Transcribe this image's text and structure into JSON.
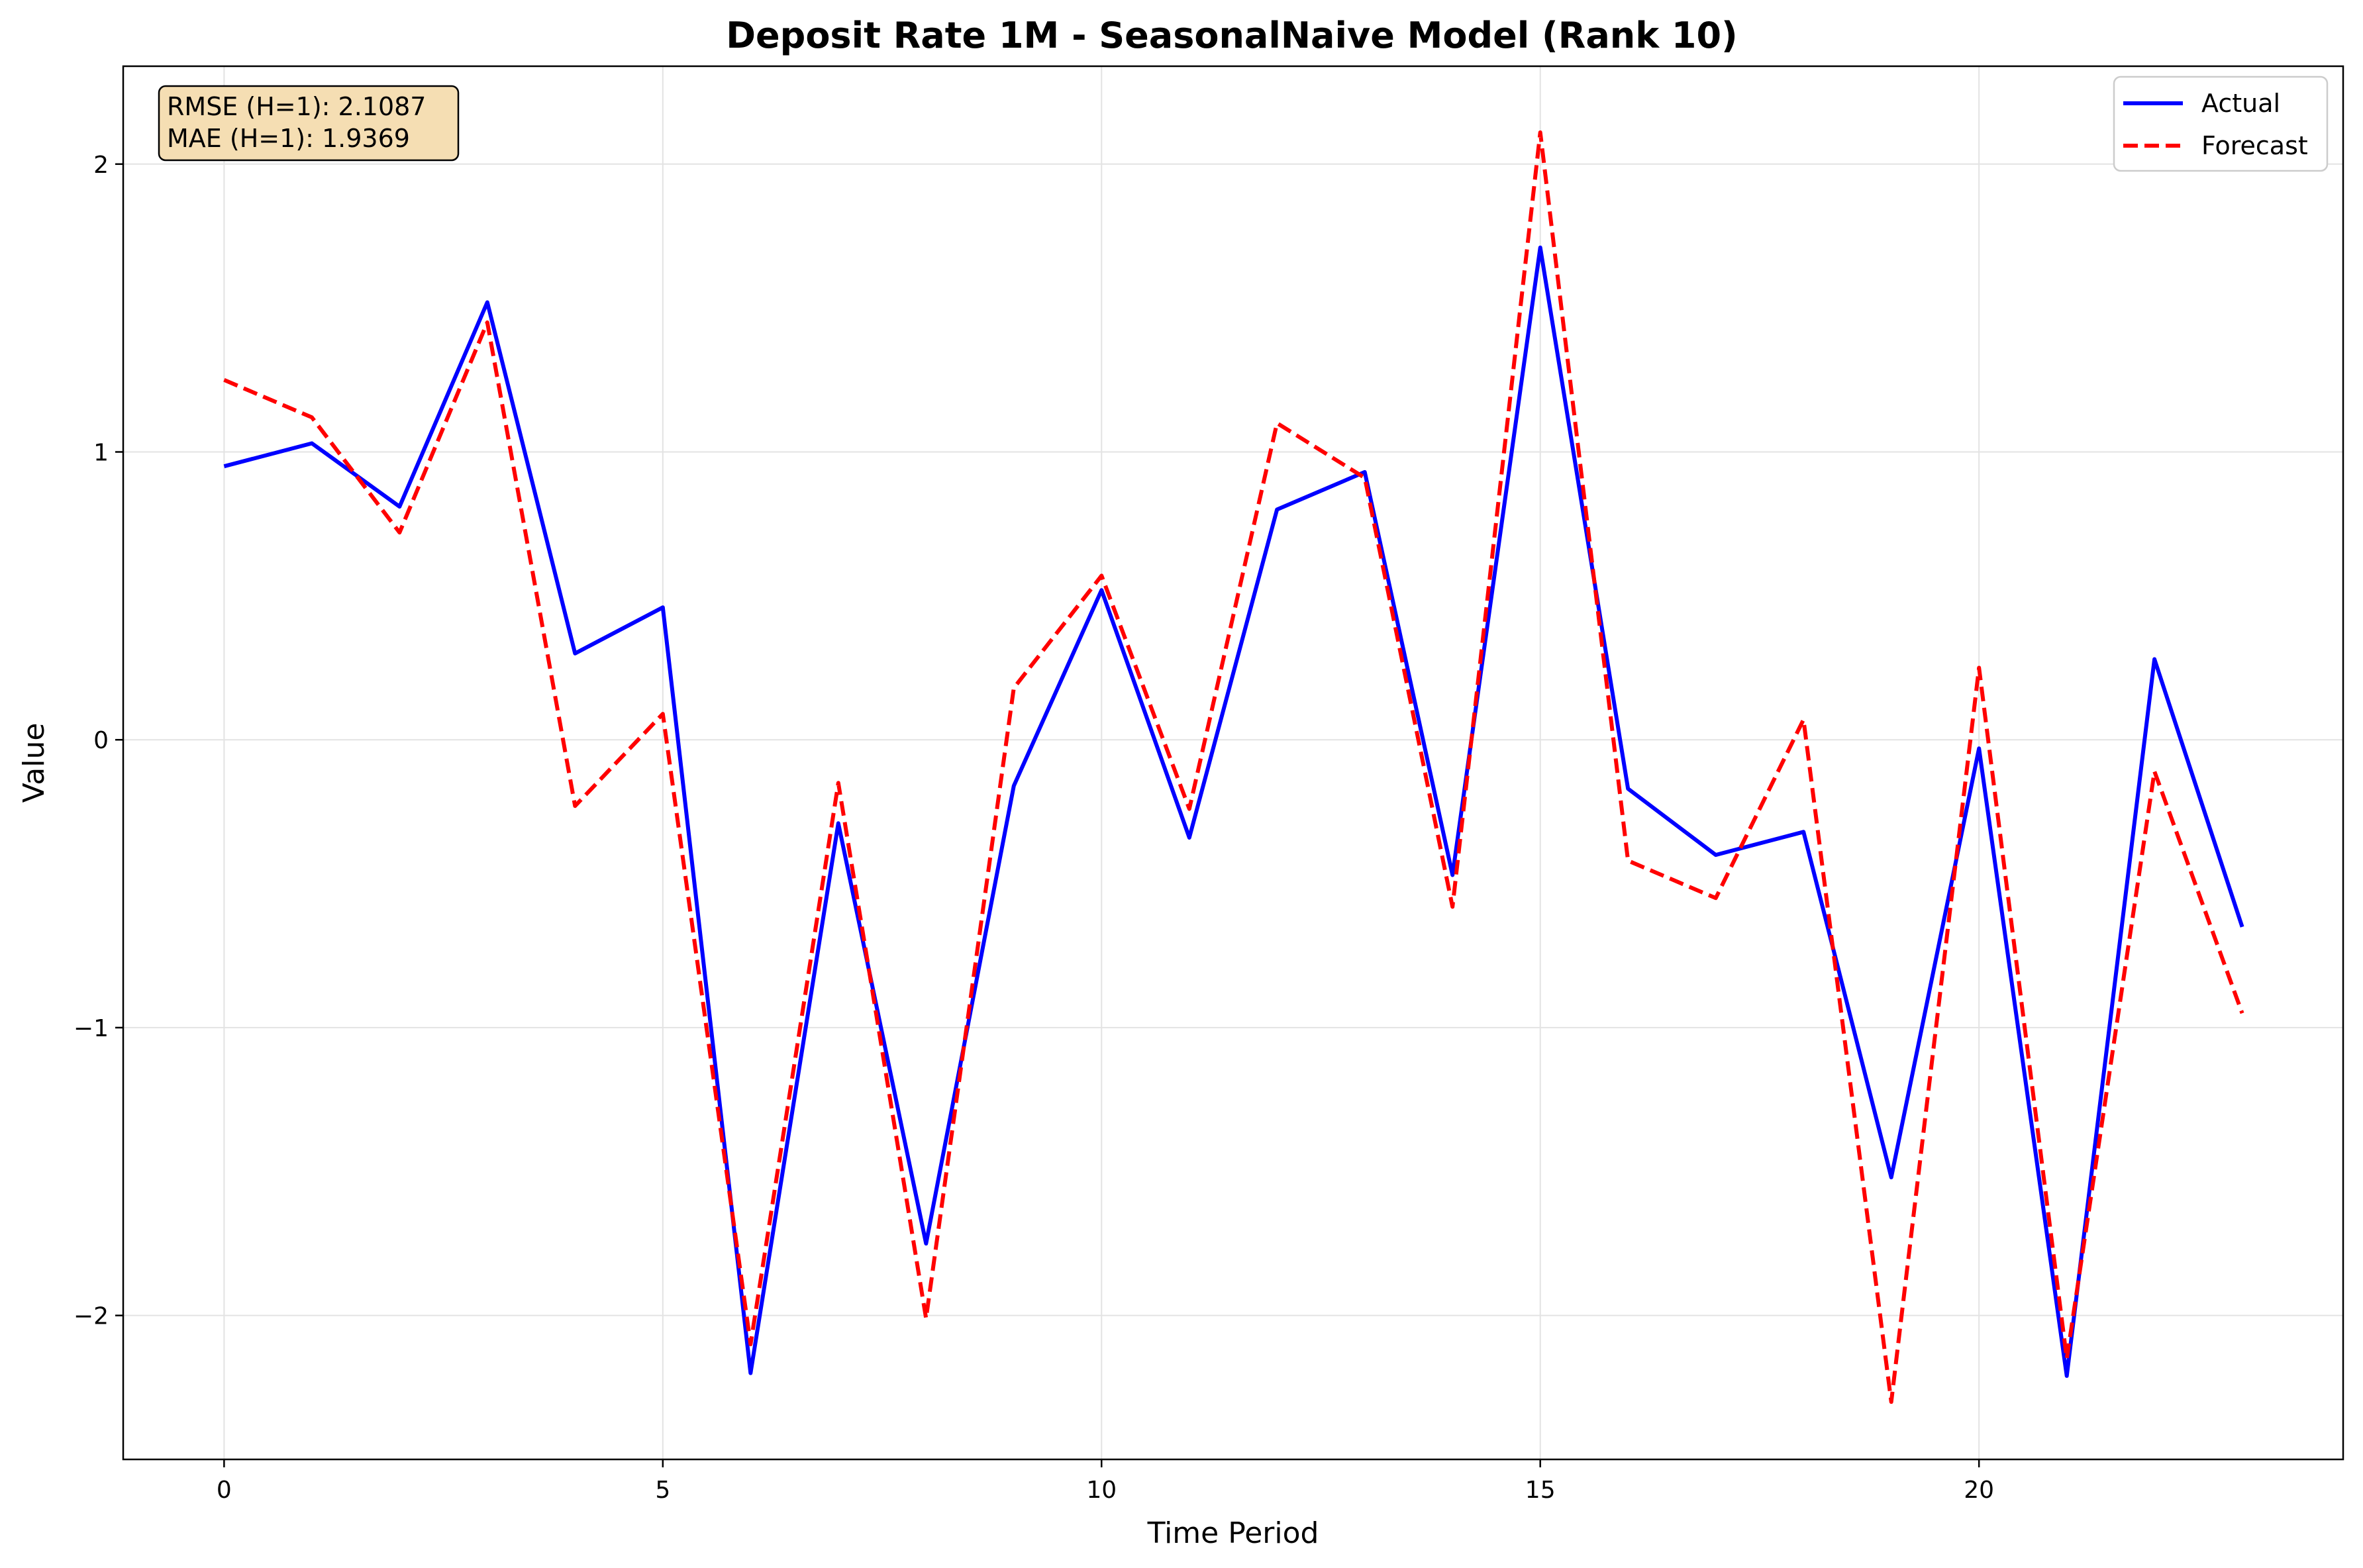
{
  "chart_data": {
    "type": "line",
    "title": "Deposit Rate 1M - SeasonalNaive Model (Rank 10)",
    "xlabel": "Time Period",
    "ylabel": "Value",
    "xlim": [
      -1.15,
      24.15
    ],
    "ylim": [
      -2.5,
      2.34
    ],
    "x_ticks": [
      0,
      5,
      10,
      15,
      20
    ],
    "y_ticks": [
      -2,
      -1,
      0,
      1,
      2
    ],
    "y_tick_labels": [
      "−2",
      "−1",
      "0",
      "1",
      "2"
    ],
    "grid": true,
    "legend_position": "top-right",
    "x": [
      0,
      1,
      2,
      3,
      4,
      5,
      6,
      7,
      8,
      9,
      10,
      11,
      12,
      13,
      14,
      15,
      16,
      17,
      18,
      19,
      20,
      21,
      22,
      23
    ],
    "series": [
      {
        "name": "Actual",
        "color": "#0000ff",
        "style": "solid",
        "values": [
          0.95,
          1.03,
          0.81,
          1.52,
          0.3,
          0.46,
          -2.2,
          -0.29,
          -1.75,
          -0.16,
          0.52,
          -0.34,
          0.8,
          0.93,
          -0.47,
          1.71,
          -0.17,
          -0.4,
          -0.32,
          -1.52,
          -0.03,
          -2.21,
          0.28,
          -0.65
        ]
      },
      {
        "name": "Forecast",
        "color": "#ff0000",
        "style": "dashed",
        "values": [
          1.25,
          1.12,
          0.72,
          1.45,
          -0.23,
          0.09,
          -2.1,
          -0.15,
          -2.01,
          0.18,
          0.57,
          -0.24,
          1.1,
          0.91,
          -0.58,
          2.11,
          -0.42,
          -0.55,
          0.07,
          -2.3,
          0.25,
          -2.15,
          -0.11,
          -0.95
        ]
      }
    ],
    "annotation": {
      "lines": [
        "RMSE (H=1): 2.1087",
        "MAE (H=1): 1.9369"
      ],
      "box_color": "#f5deb3"
    }
  }
}
